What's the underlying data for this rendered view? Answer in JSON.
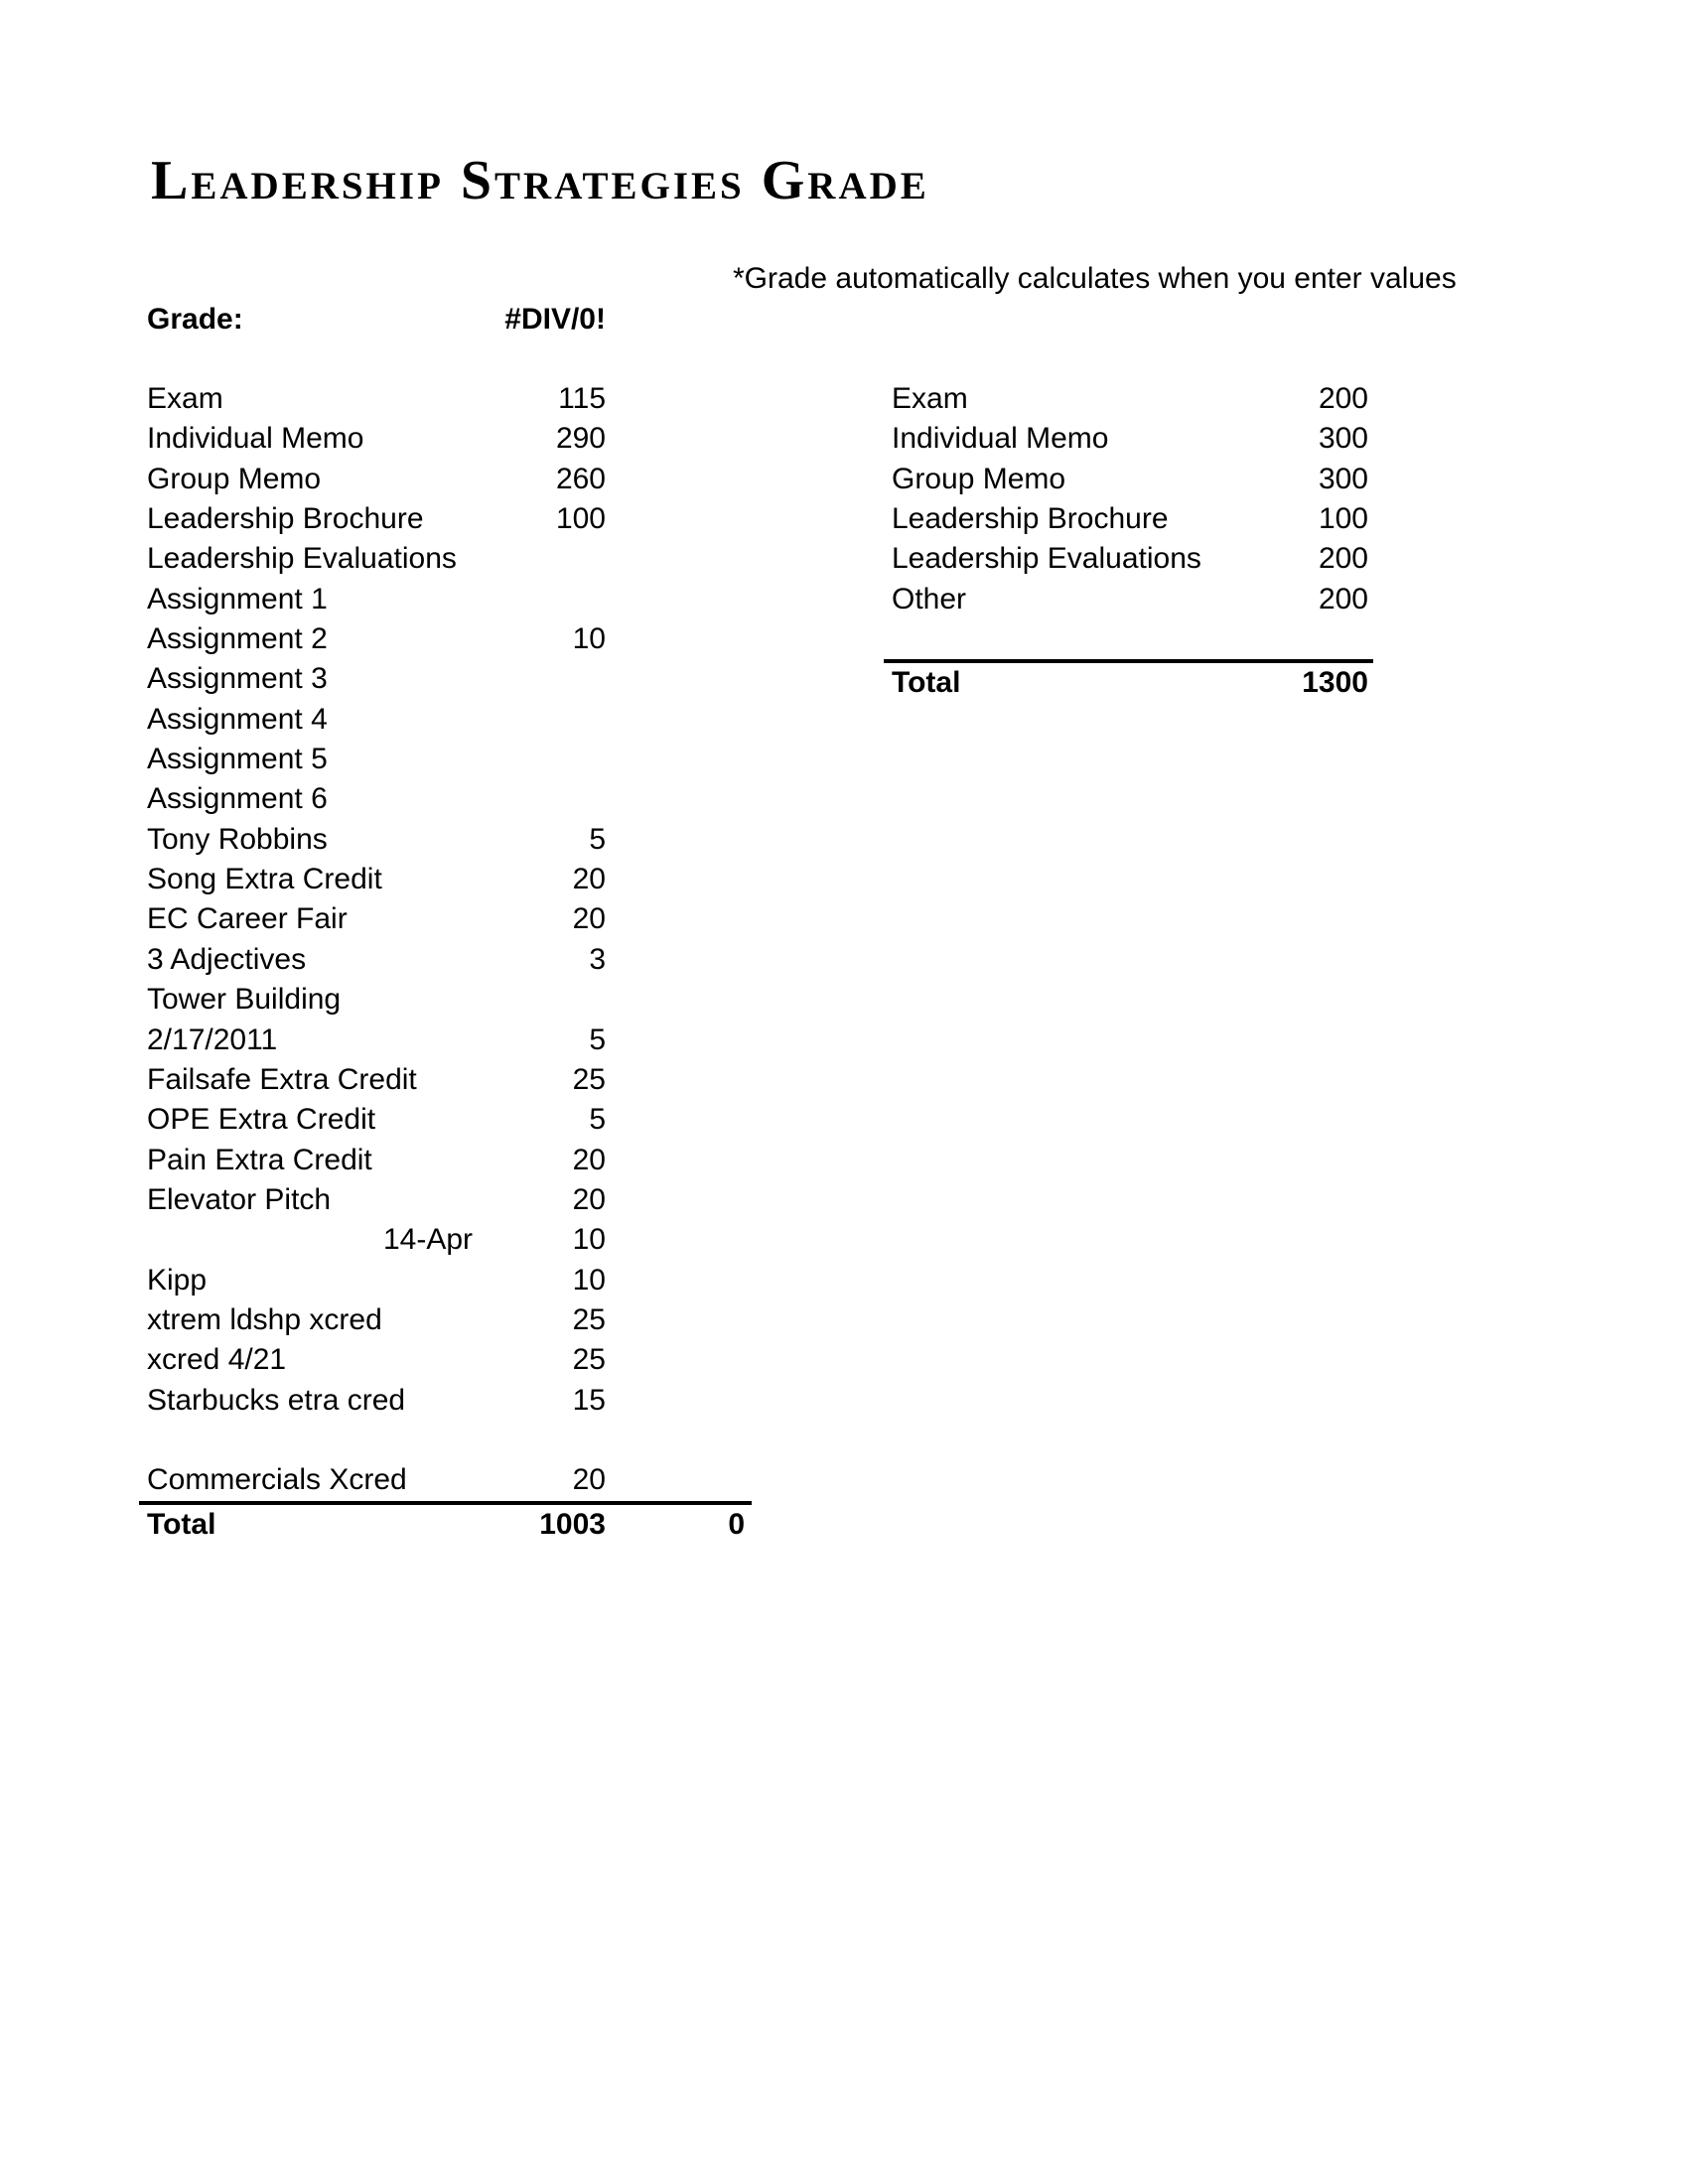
{
  "page": {
    "title": "Leadership Strategies Grade",
    "note": "*Grade automatically calculates when you enter values"
  },
  "grade": {
    "label": "Grade:",
    "value": "#DIV/0!"
  },
  "left_table": {
    "rows": [
      {
        "label": "Exam",
        "value": "115"
      },
      {
        "label": "Individual Memo",
        "value": "290"
      },
      {
        "label": "Group Memo",
        "value": "260"
      },
      {
        "label": "Leadership Brochure",
        "value": "100"
      },
      {
        "label": "Leadership Evaluations",
        "value": ""
      },
      {
        "label": "Assignment 1",
        "value": ""
      },
      {
        "label": "Assignment 2",
        "value": "10"
      },
      {
        "label": "Assignment 3",
        "value": ""
      },
      {
        "label": "Assignment 4",
        "value": ""
      },
      {
        "label": "Assignment 5",
        "value": ""
      },
      {
        "label": "Assignment 6",
        "value": ""
      },
      {
        "label": "Tony Robbins",
        "value": "5"
      },
      {
        "label": "Song Extra Credit",
        "value": "20"
      },
      {
        "label": "EC Career Fair",
        "value": "20"
      },
      {
        "label": "3 Adjectives",
        "value": "3"
      },
      {
        "label": "Tower Building",
        "value": ""
      },
      {
        "label": "2/17/2011",
        "value": "5"
      },
      {
        "label": "Failsafe Extra Credit",
        "value": "25"
      },
      {
        "label": "OPE Extra Credit",
        "value": "5"
      },
      {
        "label": "Pain Extra Credit",
        "value": "20"
      },
      {
        "label": "Elevator Pitch",
        "value": "20"
      },
      {
        "label": "14-Apr",
        "value": "10",
        "align": "right"
      },
      {
        "label": "Kipp",
        "value": "10"
      },
      {
        "label": "xtrem ldshp xcred",
        "value": "25"
      },
      {
        "label": "xcred 4/21",
        "value": "25"
      },
      {
        "label": "Starbucks etra cred",
        "value": "15"
      },
      {
        "label": "",
        "value": ""
      },
      {
        "label": "Commercials Xcred",
        "value": "20"
      }
    ],
    "total": {
      "label": "Total",
      "value": "1003",
      "extra": "0"
    }
  },
  "right_table": {
    "rows": [
      {
        "label": "Exam",
        "value": "200"
      },
      {
        "label": "Individual Memo",
        "value": "300"
      },
      {
        "label": "Group Memo",
        "value": "300"
      },
      {
        "label": "Leadership Brochure",
        "value": "100"
      },
      {
        "label": "Leadership Evaluations",
        "value": "200"
      },
      {
        "label": "Other",
        "value": "200"
      },
      {
        "label": "",
        "value": ""
      }
    ],
    "total": {
      "label": "Total",
      "value": "1300"
    }
  }
}
